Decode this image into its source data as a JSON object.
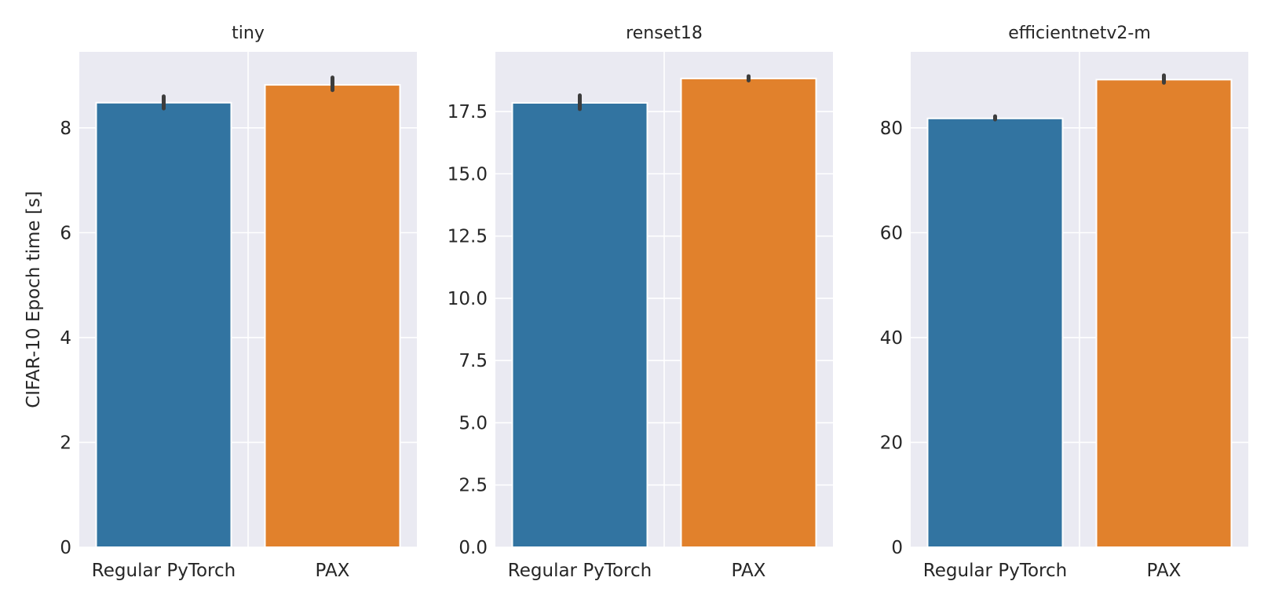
{
  "chart_data": [
    {
      "type": "bar",
      "title": "tiny",
      "ylabel": "CIFAR-10 Epoch time [s]",
      "categories": [
        "Regular PyTorch",
        "PAX"
      ],
      "values": [
        8.48,
        8.82
      ],
      "error": [
        [
          8.37,
          8.6
        ],
        [
          8.72,
          8.96
        ]
      ],
      "ylim": [
        0,
        9.45
      ],
      "yticks": [
        0,
        2,
        4,
        6,
        8
      ],
      "ytick_labels": [
        "0",
        "2",
        "4",
        "6",
        "8"
      ]
    },
    {
      "type": "bar",
      "title": "renset18",
      "ylabel": "",
      "categories": [
        "Regular PyTorch",
        "PAX"
      ],
      "values": [
        17.85,
        18.83
      ],
      "error": [
        [
          17.6,
          18.15
        ],
        [
          18.75,
          18.92
        ]
      ],
      "ylim": [
        0,
        19.9
      ],
      "yticks": [
        0,
        2.5,
        5,
        7.5,
        10,
        12.5,
        15,
        17.5
      ],
      "ytick_labels": [
        "0.0",
        "2.5",
        "5.0",
        "7.5",
        "10.0",
        "12.5",
        "15.0",
        "17.5"
      ]
    },
    {
      "type": "bar",
      "title": "efficientnetv2-m",
      "ylabel": "",
      "categories": [
        "Regular PyTorch",
        "PAX"
      ],
      "values": [
        81.8,
        89.2
      ],
      "error": [
        [
          81.6,
          82.2
        ],
        [
          88.6,
          90.0
        ]
      ],
      "ylim": [
        0,
        94.5
      ],
      "yticks": [
        0,
        20,
        40,
        60,
        80
      ],
      "ytick_labels": [
        "0",
        "20",
        "40",
        "60",
        "80"
      ]
    }
  ],
  "colors": {
    "background": "#eaeaf2",
    "grid": "#ffffff",
    "bar_regular": "#3274a1",
    "bar_pax": "#e1812c",
    "errorbar": "#3d3d3d",
    "text": "#262626"
  }
}
